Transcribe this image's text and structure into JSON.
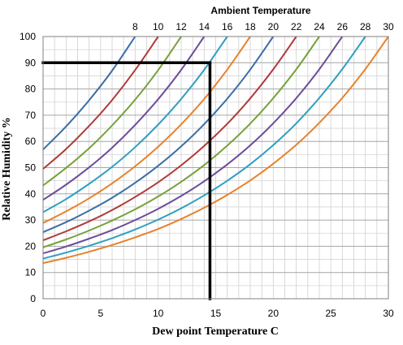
{
  "chart_data": {
    "type": "line",
    "title": "Ambient Temperature",
    "xlabel": "Dew point Temperature C",
    "ylabel": "Relative Humidity %",
    "xlim": [
      0,
      30
    ],
    "ylim": [
      0,
      100
    ],
    "x_ticks": [
      0,
      5,
      10,
      15,
      20,
      25,
      30
    ],
    "y_ticks": [
      0,
      10,
      20,
      30,
      40,
      50,
      60,
      70,
      80,
      90,
      100
    ],
    "grid": true,
    "minor_grid": true,
    "top_ticks": [
      "8",
      "10",
      "12",
      "14",
      "16",
      "18",
      "20",
      "22",
      "24",
      "26",
      "28",
      "30"
    ],
    "series": [
      {
        "ambient": 8,
        "color": "#3b6ea5",
        "x": [
          0,
          2,
          4,
          6,
          8
        ],
        "y": [
          56.9,
          65.7,
          75.7,
          87.0,
          100.0
        ]
      },
      {
        "ambient": 10,
        "color": "#b03a3a",
        "x": [
          0,
          2,
          4,
          6,
          8,
          10
        ],
        "y": [
          49.5,
          57.1,
          65.9,
          75.8,
          87.2,
          100.0
        ]
      },
      {
        "ambient": 12,
        "color": "#77a13a",
        "x": [
          0,
          2,
          4,
          6,
          8,
          10,
          12
        ],
        "y": [
          43.2,
          49.9,
          57.4,
          66.1,
          75.9,
          87.2,
          100.0
        ]
      },
      {
        "ambient": 14,
        "color": "#6b4c9a",
        "x": [
          0,
          2,
          4,
          6,
          8,
          10,
          12,
          14
        ],
        "y": [
          37.7,
          43.5,
          50.1,
          57.6,
          66.3,
          76.1,
          87.3,
          100.0
        ]
      },
      {
        "ambient": 16,
        "color": "#2f9fbf",
        "x": [
          0,
          2,
          4,
          6,
          8,
          10,
          12,
          14,
          16
        ],
        "y": [
          33.0,
          38.0,
          43.8,
          50.3,
          57.8,
          66.4,
          76.2,
          87.3,
          100.0
        ]
      },
      {
        "ambient": 18,
        "color": "#e8822a",
        "x": [
          0,
          2,
          4,
          6,
          8,
          10,
          12,
          14,
          16,
          18
        ],
        "y": [
          28.9,
          33.3,
          38.3,
          44.0,
          50.5,
          58.0,
          66.5,
          76.2,
          87.4,
          100.0
        ]
      },
      {
        "ambient": 20,
        "color": "#3b6ea5",
        "x": [
          0,
          2,
          4,
          6,
          8,
          10,
          12,
          14,
          16,
          18,
          20
        ],
        "y": [
          25.4,
          29.2,
          33.6,
          38.5,
          44.2,
          50.7,
          58.1,
          66.6,
          76.3,
          87.4,
          100.0
        ]
      },
      {
        "ambient": 22,
        "color": "#b03a3a",
        "x": [
          0,
          2,
          4,
          6,
          8,
          10,
          12,
          14,
          16,
          18,
          20,
          22
        ],
        "y": [
          22.3,
          25.7,
          29.5,
          33.8,
          38.8,
          44.4,
          50.9,
          58.3,
          66.7,
          76.4,
          87.5,
          100.0
        ]
      },
      {
        "ambient": 24,
        "color": "#77a13a",
        "x": [
          0,
          2,
          4,
          6,
          8,
          10,
          12,
          14,
          16,
          18,
          20,
          22,
          24
        ],
        "y": [
          19.6,
          22.6,
          26.0,
          29.8,
          34.1,
          39.0,
          44.6,
          51.0,
          58.4,
          66.8,
          76.5,
          87.5,
          100.0
        ]
      },
      {
        "ambient": 26,
        "color": "#6b4c9a",
        "x": [
          0,
          2,
          4,
          6,
          8,
          10,
          12,
          14,
          16,
          18,
          20,
          22,
          24,
          26
        ],
        "y": [
          17.3,
          19.9,
          22.9,
          26.2,
          30.0,
          34.3,
          39.2,
          44.8,
          51.2,
          58.5,
          66.9,
          76.5,
          87.5,
          100.0
        ]
      },
      {
        "ambient": 28,
        "color": "#2f9fbf",
        "x": [
          0,
          2,
          4,
          6,
          8,
          10,
          12,
          14,
          16,
          18,
          20,
          22,
          24,
          26,
          28
        ],
        "y": [
          15.3,
          17.6,
          20.2,
          23.1,
          26.4,
          30.2,
          34.5,
          39.4,
          45.0,
          51.3,
          58.6,
          66.9,
          76.6,
          87.6,
          100.0
        ]
      },
      {
        "ambient": 30,
        "color": "#e8822a",
        "x": [
          0,
          2,
          4,
          6,
          8,
          10,
          12,
          14,
          16,
          18,
          20,
          22,
          24,
          26,
          28,
          30
        ],
        "y": [
          13.6,
          15.6,
          17.9,
          20.5,
          23.4,
          26.6,
          30.4,
          34.7,
          39.6,
          45.1,
          51.5,
          58.7,
          67.1,
          76.6,
          87.6,
          100.0
        ]
      }
    ],
    "reference_lines": [
      {
        "x": [
          0,
          14.5
        ],
        "y": [
          90,
          90
        ],
        "color": "#000000"
      },
      {
        "x": [
          14.5,
          14.5
        ],
        "y": [
          90,
          0
        ],
        "color": "#000000"
      }
    ]
  }
}
